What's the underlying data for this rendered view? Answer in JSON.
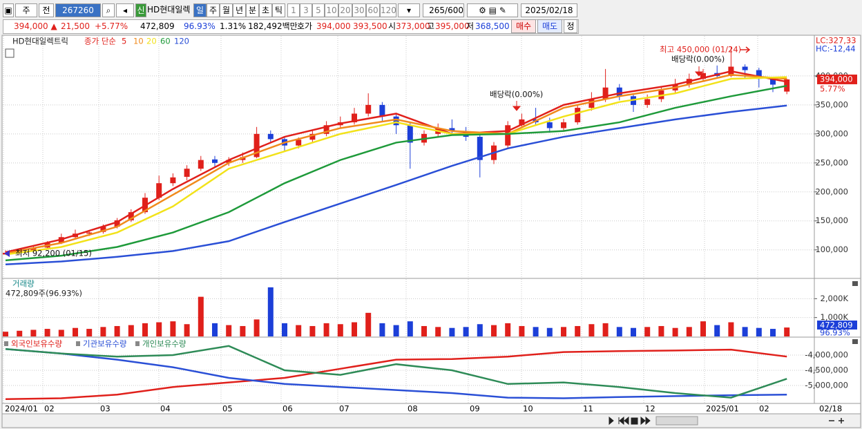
{
  "toolbar": {
    "prefix_labels": [
      "주",
      "전"
    ],
    "code": "267260",
    "signal": "신",
    "name": "HD현대일렉",
    "periods": [
      "일",
      "주",
      "월",
      "년",
      "분",
      "초",
      "틱"
    ],
    "intervals": [
      "1",
      "3",
      "5",
      "10",
      "20",
      "30",
      "60",
      "120"
    ],
    "count": "265",
    "count_max": "/600",
    "date": "2025/02/18"
  },
  "quote": {
    "price": "394,000",
    "arrow": "▲",
    "change": "21,500",
    "change_pct": "+5.77%",
    "volume": "472,809",
    "volume_ratio": "96.93%",
    "turnover": "1.31%",
    "amount": "182,492백만",
    "bid_label": "호가",
    "ask": "394,000",
    "bid": "393,500",
    "open_label": "시",
    "open": "373,000",
    "high_label": "고",
    "high": "395,000",
    "low_label": "저",
    "low": "368,500",
    "buy": "매수",
    "sell": "매도",
    "fix": "정"
  },
  "chart_data": [
    {
      "type": "candlestick",
      "title": "HD현대일렉트릭",
      "subtitle": "종가 단순",
      "up_color": "#e0201b",
      "down_color": "#1c3fd8",
      "open": [
        92000,
        95000,
        98000,
        104000,
        112000,
        122000,
        128000,
        131000,
        140000,
        151000,
        165000,
        190000,
        215000,
        226000,
        240000,
        256000,
        250000,
        255000,
        260000,
        300000,
        291000,
        280000,
        290000,
        300000,
        315000,
        320000,
        335000,
        350000,
        330000,
        315000,
        285000,
        300000,
        310000,
        305000,
        295000,
        255000,
        280000,
        315000,
        325000,
        320000,
        310000,
        320000,
        345000,
        360000,
        380000,
        365000,
        350000,
        360000,
        375000,
        385000,
        395000,
        405000,
        400000,
        416000,
        410000,
        395000,
        373000
      ],
      "high": [
        99000,
        101000,
        106000,
        115000,
        128000,
        135000,
        134000,
        144000,
        155000,
        170000,
        198000,
        228000,
        232000,
        246000,
        262000,
        262000,
        260000,
        268000,
        312000,
        306000,
        296000,
        294000,
        306000,
        322000,
        330000,
        345000,
        370000,
        355000,
        336000,
        320000,
        306000,
        318000,
        325000,
        312000,
        300000,
        286000,
        322000,
        335000,
        345000,
        328000,
        326000,
        350000,
        372000,
        412000,
        386000,
        370000,
        368000,
        382000,
        395000,
        404000,
        412000,
        418000,
        450000,
        420000,
        414000,
        398000,
        395000
      ],
      "low": [
        92200,
        93000,
        96000,
        102000,
        110000,
        120000,
        124000,
        128000,
        137000,
        148000,
        162000,
        186000,
        210000,
        220000,
        236000,
        244000,
        245000,
        250000,
        258000,
        285000,
        270000,
        275000,
        286000,
        296000,
        310000,
        316000,
        330000,
        322000,
        300000,
        240000,
        280000,
        295000,
        298000,
        288000,
        225000,
        248000,
        276000,
        310000,
        314000,
        302000,
        304000,
        316000,
        340000,
        355000,
        358000,
        338000,
        345000,
        355000,
        370000,
        380000,
        390000,
        396000,
        398000,
        395000,
        380000,
        372000,
        368500
      ],
      "close": [
        95000,
        98000,
        103000,
        112000,
        122000,
        128000,
        130000,
        140000,
        151000,
        165000,
        190000,
        215000,
        225000,
        240000,
        255000,
        250000,
        255000,
        260000,
        300000,
        291000,
        280000,
        290000,
        300000,
        315000,
        320000,
        335000,
        350000,
        330000,
        315000,
        285000,
        300000,
        310000,
        305000,
        295000,
        255000,
        280000,
        315000,
        325000,
        320000,
        310000,
        320000,
        345000,
        360000,
        380000,
        365000,
        350000,
        360000,
        375000,
        385000,
        395000,
        405000,
        400000,
        416000,
        410000,
        395000,
        385000,
        394000
      ],
      "series": [
        {
          "name": "5",
          "color": "#e0201b",
          "x": [
            0,
            4,
            8,
            12,
            16,
            20,
            24,
            28,
            32,
            36,
            40,
            44,
            48,
            52,
            56
          ],
          "values": [
            96000,
            118000,
            148000,
            205000,
            255000,
            295000,
            318000,
            335000,
            300000,
            305000,
            350000,
            370000,
            385000,
            408000,
            390000
          ]
        },
        {
          "name": "10",
          "color": "#f08a1c",
          "x": [
            0,
            4,
            8,
            12,
            16,
            20,
            24,
            28,
            32,
            36,
            40,
            44,
            48,
            52,
            56
          ],
          "values": [
            94000,
            112000,
            140000,
            195000,
            250000,
            285000,
            310000,
            325000,
            305000,
            300000,
            345000,
            365000,
            380000,
            402000,
            395000
          ]
        },
        {
          "name": "20",
          "color": "#f2e21a",
          "x": [
            0,
            4,
            8,
            12,
            16,
            20,
            24,
            28,
            32,
            36,
            40,
            44,
            48,
            52,
            56
          ],
          "values": [
            92000,
            105000,
            130000,
            175000,
            240000,
            270000,
            300000,
            320000,
            300000,
            300000,
            330000,
            355000,
            370000,
            395000,
            398000
          ]
        },
        {
          "name": "60",
          "color": "#1e9a3a",
          "x": [
            0,
            4,
            8,
            12,
            16,
            20,
            24,
            28,
            32,
            36,
            40,
            44,
            48,
            52,
            56
          ],
          "values": [
            82000,
            90000,
            105000,
            130000,
            165000,
            215000,
            255000,
            285000,
            298000,
            300000,
            305000,
            320000,
            345000,
            365000,
            383000
          ]
        },
        {
          "name": "120",
          "color": "#2a4fd6",
          "x": [
            0,
            4,
            8,
            12,
            16,
            20,
            24,
            28,
            32,
            36,
            40,
            44,
            48,
            52,
            56
          ],
          "values": [
            75000,
            80000,
            88000,
            98000,
            115000,
            148000,
            180000,
            212000,
            245000,
            275000,
            295000,
            310000,
            325000,
            338000,
            349000
          ]
        }
      ],
      "ylim": [
        52000,
        469000
      ],
      "yticks": [
        {
          "value": 100000,
          "label": "100,000"
        },
        {
          "value": 150000,
          "label": "150,000"
        },
        {
          "value": 200000,
          "label": "200,000"
        },
        {
          "value": 250000,
          "label": "250,000"
        },
        {
          "value": 300000,
          "label": "300,000"
        },
        {
          "value": 350000,
          "label": "350,000"
        },
        {
          "value": 400000,
          "label": "400,000"
        }
      ],
      "grid": true,
      "annotations": [
        "최고 450,000 (01/24)",
        "배당락(0.00%)",
        "배당락(0.00%)",
        "최저 92,200 (01/15)"
      ],
      "side_labels": {
        "lc": "LC:327,33",
        "hc": "HC:-12,44",
        "last": "394,000",
        "last_pct": "5.77%"
      }
    },
    {
      "type": "bar",
      "title": "거래량",
      "subtitle": "472,809주(96.93%)",
      "values": [
        250000,
        300000,
        350000,
        400000,
        350000,
        450000,
        400000,
        500000,
        550000,
        600000,
        700000,
        750000,
        800000,
        650000,
        2100000,
        700000,
        600000,
        550000,
        900000,
        2600000,
        700000,
        600000,
        550000,
        700000,
        650000,
        750000,
        1250000,
        700000,
        600000,
        800000,
        550000,
        500000,
        450000,
        500000,
        650000,
        600000,
        700000,
        550000,
        500000,
        450000,
        500000,
        550000,
        650000,
        700000,
        500000,
        450000,
        500000,
        550000,
        450000,
        500000,
        800000,
        600000,
        750000,
        500000,
        450000,
        400000,
        472809
      ],
      "ylim": [
        0,
        3037000
      ],
      "yticks": [
        {
          "value": 1000000,
          "label": "1,000K"
        },
        {
          "value": 2000000,
          "label": "2,000K"
        }
      ],
      "side_labels": {
        "last": "472,809",
        "last_pct": "96.93%"
      }
    },
    {
      "type": "line",
      "series": [
        {
          "name": "외국인보유수량",
          "color": "#e0201b",
          "x": [
            0,
            4,
            8,
            12,
            16,
            20,
            24,
            28,
            32,
            36,
            40,
            44,
            48,
            52,
            56
          ],
          "values": [
            -5450000,
            -5420000,
            -5300000,
            -5050000,
            -4900000,
            -4750000,
            -4450000,
            -4150000,
            -4130000,
            -4050000,
            -3900000,
            -3870000,
            -3850000,
            -3820000,
            -4050000
          ]
        },
        {
          "name": "기관보유수량",
          "color": "#2a4fd6",
          "x": [
            0,
            4,
            8,
            12,
            16,
            20,
            24,
            28,
            32,
            36,
            40,
            44,
            48,
            52,
            56
          ],
          "values": [
            -3800000,
            -3950000,
            -4150000,
            -4400000,
            -4750000,
            -4950000,
            -5050000,
            -5150000,
            -5250000,
            -5400000,
            -5420000,
            -5380000,
            -5350000,
            -5320000,
            -5300000
          ]
        },
        {
          "name": "개인보유수량",
          "color": "#2e8b57",
          "x": [
            0,
            4,
            8,
            12,
            16,
            20,
            24,
            28,
            32,
            36,
            40,
            44,
            48,
            52,
            56
          ],
          "values": [
            -3800000,
            -3950000,
            -4050000,
            -4000000,
            -3700000,
            -4500000,
            -4650000,
            -4300000,
            -4500000,
            -4950000,
            -4900000,
            -5050000,
            -5250000,
            -5400000,
            -4780000
          ]
        }
      ],
      "ylim": [
        -5568000,
        -3432000
      ],
      "yticks": [
        {
          "value": -4000000,
          "label": "-4,000,000"
        },
        {
          "value": -4500000,
          "label": "-4,500,000"
        },
        {
          "value": -5000000,
          "label": "-5,000,000"
        }
      ]
    }
  ],
  "x_axis": {
    "labels": [
      "2024/01",
      "02",
      "03",
      "04",
      "05",
      "06",
      "07",
      "08",
      "09",
      "10",
      "11",
      "12",
      "2025/01",
      "02"
    ],
    "last_date": "02/18"
  }
}
